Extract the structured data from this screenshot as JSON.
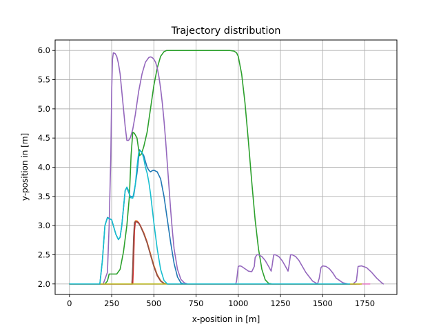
{
  "chart_data": {
    "type": "line",
    "title": "Trajectory distribution",
    "xlabel": "x-position in [m]",
    "ylabel": "y-position in [m]",
    "xlim": [
      -85,
      1940
    ],
    "ylim": [
      1.82,
      6.18
    ],
    "xticks": [
      0,
      250,
      500,
      750,
      1000,
      1250,
      1500,
      1750
    ],
    "yticks": [
      2.0,
      2.5,
      3.0,
      3.5,
      4.0,
      4.5,
      5.0,
      5.5,
      6.0
    ],
    "xtick_labels": [
      "0",
      "250",
      "500",
      "750",
      "1000",
      "1250",
      "1500",
      "1750"
    ],
    "ytick_labels": [
      "2.0",
      "2.5",
      "3.0",
      "3.5",
      "4.0",
      "4.5",
      "5.0",
      "5.5",
      "6.0"
    ],
    "grid": true,
    "legend": "none",
    "series": [
      {
        "color": "#1f77b4",
        "x": [
          0,
          180,
          195,
          210,
          225,
          250,
          275,
          290,
          300,
          310,
          320,
          330,
          340,
          360,
          380,
          400,
          415,
          430,
          440,
          450,
          460,
          470,
          480,
          490,
          500,
          520,
          540,
          560,
          580,
          600,
          620,
          640,
          660,
          680,
          700,
          750,
          1000,
          1250,
          1500,
          1700
        ],
        "y": [
          2.0,
          2.0,
          2.4,
          3.0,
          3.14,
          3.1,
          2.85,
          2.76,
          2.8,
          3.0,
          3.3,
          3.6,
          3.65,
          3.5,
          3.5,
          3.9,
          4.3,
          4.25,
          4.2,
          4.1,
          4.0,
          3.95,
          3.92,
          3.94,
          3.95,
          3.92,
          3.8,
          3.5,
          3.1,
          2.7,
          2.35,
          2.12,
          2.02,
          2.0,
          2.0,
          2.0,
          2.0,
          2.0,
          2.0,
          2.0
        ]
      },
      {
        "color": "#ff7f0e",
        "x": [
          0,
          300,
          340,
          360,
          370,
          380,
          385,
          390,
          400,
          410,
          420,
          440,
          460,
          480,
          500,
          520,
          540,
          560,
          580,
          600,
          700,
          1000,
          1500,
          1720
        ],
        "y": [
          2.0,
          2.0,
          2.0,
          2.0,
          2.0,
          2.5,
          3.0,
          3.08,
          3.08,
          3.05,
          3.0,
          2.88,
          2.72,
          2.52,
          2.32,
          2.16,
          2.06,
          2.01,
          2.0,
          2.0,
          2.0,
          2.0,
          2.0,
          2.0
        ]
      },
      {
        "color": "#2ca02c",
        "x": [
          0,
          210,
          225,
          235,
          250,
          280,
          300,
          320,
          340,
          355,
          365,
          375,
          385,
          400,
          415,
          425,
          440,
          460,
          480,
          500,
          520,
          540,
          560,
          575,
          590,
          620,
          700,
          800,
          900,
          950,
          975,
          990,
          1000,
          1020,
          1040,
          1060,
          1080,
          1100,
          1120,
          1140,
          1160,
          1180,
          1200,
          1500,
          1700
        ],
        "y": [
          2.0,
          2.0,
          2.05,
          2.17,
          2.17,
          2.17,
          2.25,
          2.55,
          3.0,
          3.5,
          4.2,
          4.6,
          4.58,
          4.5,
          4.2,
          4.22,
          4.35,
          4.6,
          5.0,
          5.4,
          5.7,
          5.9,
          5.98,
          6.0,
          6.0,
          6.0,
          6.0,
          6.0,
          6.0,
          6.0,
          5.99,
          5.96,
          5.9,
          5.6,
          5.1,
          4.45,
          3.75,
          3.1,
          2.6,
          2.25,
          2.07,
          2.01,
          2.0,
          2.0,
          2.0
        ]
      },
      {
        "color": "#d62728",
        "x": [
          0,
          300,
          345,
          365,
          375,
          380,
          385,
          390,
          400,
          410,
          420,
          440,
          460,
          480,
          500,
          520,
          540,
          560,
          580,
          600,
          1000,
          1500,
          1730
        ],
        "y": [
          2.0,
          2.0,
          2.0,
          2.0,
          2.0,
          2.4,
          2.9,
          3.06,
          3.07,
          3.05,
          3.0,
          2.87,
          2.71,
          2.5,
          2.3,
          2.14,
          2.05,
          2.01,
          2.0,
          2.0,
          2.0,
          2.0,
          2.0
        ]
      },
      {
        "color": "#9467bd",
        "x": [
          0,
          200,
          225,
          235,
          245,
          250,
          255,
          260,
          270,
          280,
          290,
          300,
          310,
          320,
          330,
          340,
          350,
          360,
          375,
          390,
          410,
          430,
          450,
          470,
          480,
          490,
          500,
          510,
          520,
          530,
          540,
          550,
          560,
          570,
          580,
          590,
          600,
          610,
          620,
          640,
          660,
          680,
          700,
          750,
          800,
          950,
          985,
          990,
          1000,
          1010,
          1020,
          1040,
          1060,
          1080,
          1095,
          1100,
          1110,
          1120,
          1140,
          1160,
          1180,
          1195,
          1200,
          1210,
          1220,
          1240,
          1260,
          1280,
          1295,
          1300,
          1310,
          1320,
          1340,
          1360,
          1380,
          1400,
          1440,
          1470,
          1480,
          1490,
          1500,
          1520,
          1540,
          1560,
          1580,
          1620,
          1650,
          1680,
          1700,
          1710,
          1730,
          1760,
          1790,
          1820,
          1850,
          1860
        ],
        "y": [
          2.0,
          2.0,
          2.2,
          3.0,
          4.2,
          5.3,
          5.85,
          5.96,
          5.95,
          5.9,
          5.78,
          5.6,
          5.3,
          5.0,
          4.7,
          4.46,
          4.46,
          4.5,
          4.65,
          4.9,
          5.3,
          5.6,
          5.8,
          5.88,
          5.89,
          5.88,
          5.85,
          5.8,
          5.7,
          5.55,
          5.35,
          5.1,
          4.8,
          4.45,
          4.05,
          3.65,
          3.25,
          2.9,
          2.6,
          2.25,
          2.08,
          2.02,
          2.0,
          2.0,
          2.0,
          2.0,
          2.0,
          2.05,
          2.3,
          2.31,
          2.3,
          2.26,
          2.22,
          2.21,
          2.3,
          2.45,
          2.5,
          2.5,
          2.47,
          2.4,
          2.3,
          2.22,
          2.3,
          2.5,
          2.5,
          2.47,
          2.4,
          2.3,
          2.22,
          2.3,
          2.5,
          2.5,
          2.47,
          2.4,
          2.3,
          2.2,
          2.05,
          2.0,
          2.1,
          2.28,
          2.31,
          2.3,
          2.26,
          2.19,
          2.1,
          2.02,
          2.0,
          2.0,
          2.05,
          2.3,
          2.31,
          2.28,
          2.2,
          2.1,
          2.02,
          2.0
        ]
      },
      {
        "color": "#8c564b",
        "x": [
          0,
          300,
          340,
          360,
          370,
          375,
          380,
          385,
          390,
          400,
          410,
          420,
          440,
          460,
          480,
          500,
          520,
          540,
          560,
          580,
          600,
          1000,
          1500,
          1720
        ],
        "y": [
          2.0,
          2.0,
          2.0,
          2.0,
          2.0,
          2.3,
          2.8,
          3.05,
          3.07,
          3.06,
          3.04,
          2.99,
          2.86,
          2.7,
          2.5,
          2.3,
          2.15,
          2.05,
          2.01,
          2.0,
          2.0,
          2.0,
          2.0,
          2.0
        ]
      },
      {
        "color": "#e377c2",
        "x": [
          0,
          250,
          300,
          340,
          360,
          400,
          450,
          500,
          520,
          1000,
          1500,
          1780
        ],
        "y": [
          2.0,
          2.0,
          2.0,
          2.0,
          2.0,
          2.0,
          2.0,
          2.0,
          2.0,
          2.0,
          2.0,
          2.0
        ]
      },
      {
        "color": "#7f7f7f",
        "x": [
          0,
          500,
          1000,
          1500,
          1700
        ],
        "y": [
          2.0,
          2.0,
          2.0,
          2.0,
          2.0
        ]
      },
      {
        "color": "#bcbd22",
        "x": [
          0,
          250,
          300,
          340,
          360,
          400,
          450,
          500,
          550,
          570,
          590,
          1000,
          1500,
          1650,
          1690,
          1700,
          1730
        ],
        "y": [
          2.0,
          2.0,
          2.0,
          2.0,
          2.0,
          2.0,
          2.0,
          2.0,
          2.0,
          2.0,
          2.0,
          2.0,
          2.0,
          2.0,
          2.0,
          2.0,
          2.0
        ]
      },
      {
        "color": "#17becf",
        "x": [
          0,
          180,
          195,
          210,
          225,
          250,
          275,
          290,
          300,
          310,
          320,
          330,
          340,
          350,
          360,
          375,
          390,
          400,
          410,
          420,
          430,
          440,
          450,
          460,
          470,
          480,
          490,
          500,
          520,
          540,
          560,
          580,
          600,
          620,
          640,
          660,
          700,
          1000,
          1500,
          1660
        ],
        "y": [
          2.0,
          2.0,
          2.4,
          3.0,
          3.13,
          3.1,
          2.85,
          2.76,
          2.8,
          3.0,
          3.3,
          3.6,
          3.66,
          3.6,
          3.48,
          3.47,
          3.7,
          4.0,
          4.25,
          4.28,
          4.25,
          4.15,
          4.0,
          3.9,
          3.75,
          3.55,
          3.3,
          3.05,
          2.6,
          2.25,
          2.06,
          2.0,
          2.0,
          2.0,
          2.0,
          2.0,
          2.0,
          2.0,
          2.0,
          2.0
        ]
      }
    ]
  }
}
